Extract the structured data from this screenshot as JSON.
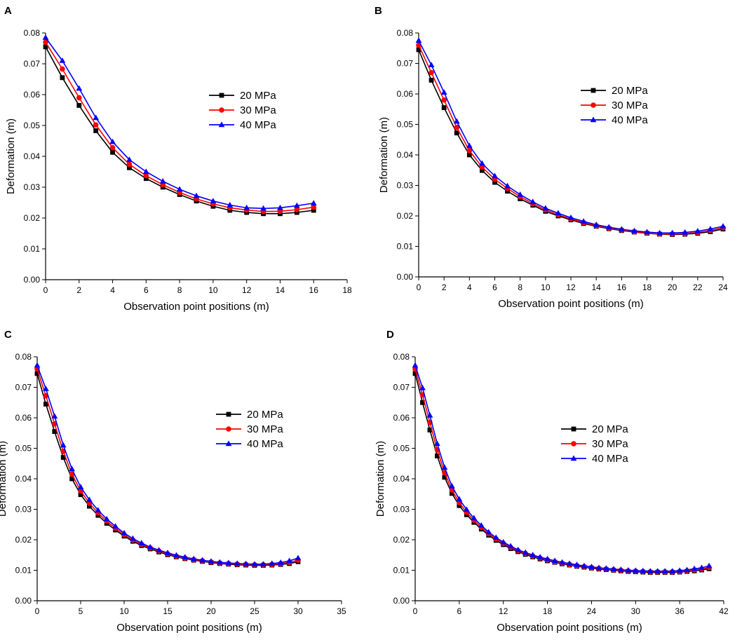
{
  "figure": {
    "panels": [
      "A",
      "B",
      "C",
      "D"
    ]
  },
  "colors": {
    "20 MPa": "#000000",
    "30 MPa": "#ff0000",
    "40 MPa": "#0000ff"
  },
  "chart_data": [
    {
      "panel": "A",
      "type": "line",
      "xlabel": "Observation point positions (m)",
      "ylabel": "Deformation (m)",
      "xlim": [
        0,
        18
      ],
      "ylim": [
        0,
        0.08
      ],
      "xticks": [
        0,
        2,
        4,
        6,
        8,
        10,
        12,
        14,
        16,
        18
      ],
      "yticks": [
        0,
        0.01,
        0.02,
        0.03,
        0.04,
        0.05,
        0.06,
        0.07,
        0.08
      ],
      "ytick_labels": [
        "0.00",
        "0.01",
        "0.02",
        "0.03",
        "0.04",
        "0.05",
        "0.06",
        "0.07",
        "0.08"
      ],
      "legend_position": "upper-middle",
      "x": [
        0,
        1,
        2,
        3,
        4,
        5,
        6,
        7,
        8,
        9,
        10,
        11,
        12,
        13,
        14,
        15,
        16
      ],
      "series": [
        {
          "name": "20 MPa",
          "marker": "square",
          "values": [
            0.0755,
            0.0655,
            0.0565,
            0.0483,
            0.0413,
            0.0363,
            0.0328,
            0.03,
            0.0276,
            0.0255,
            0.0238,
            0.0225,
            0.0218,
            0.0214,
            0.0214,
            0.0218,
            0.0225
          ]
        },
        {
          "name": "30 MPa",
          "marker": "circle",
          "values": [
            0.077,
            0.0683,
            0.059,
            0.0502,
            0.0428,
            0.0374,
            0.0337,
            0.0308,
            0.0283,
            0.0262,
            0.0246,
            0.0233,
            0.0226,
            0.0221,
            0.0222,
            0.0227,
            0.0235
          ]
        },
        {
          "name": "40 MPa",
          "marker": "triangle",
          "values": [
            0.0785,
            0.071,
            0.062,
            0.0525,
            0.0447,
            0.0389,
            0.035,
            0.0319,
            0.0293,
            0.0272,
            0.0255,
            0.0242,
            0.0233,
            0.0231,
            0.0233,
            0.024,
            0.0248
          ]
        }
      ]
    },
    {
      "panel": "B",
      "type": "line",
      "xlabel": "Observation point positions (m)",
      "ylabel": "Deformation (m)",
      "xlim": [
        0,
        24
      ],
      "ylim": [
        0,
        0.08
      ],
      "xticks": [
        0,
        2,
        4,
        6,
        8,
        10,
        12,
        14,
        16,
        18,
        20,
        22,
        24
      ],
      "yticks": [
        0,
        0.01,
        0.02,
        0.03,
        0.04,
        0.05,
        0.06,
        0.07,
        0.08
      ],
      "ytick_labels": [
        "0.00",
        "0.01",
        "0.02",
        "0.03",
        "0.04",
        "0.05",
        "0.06",
        "0.07",
        "0.08"
      ],
      "legend_position": "upper-middle",
      "x": [
        0,
        1,
        2,
        3,
        4,
        5,
        6,
        7,
        8,
        9,
        10,
        11,
        12,
        13,
        14,
        15,
        16,
        17,
        18,
        19,
        20,
        21,
        22,
        23,
        24
      ],
      "series": [
        {
          "name": "20 MPa",
          "marker": "square",
          "values": [
            0.0745,
            0.0645,
            0.0555,
            0.0472,
            0.04,
            0.0349,
            0.031,
            0.0281,
            0.0256,
            0.0235,
            0.0215,
            0.02,
            0.0187,
            0.0175,
            0.0166,
            0.0158,
            0.0152,
            0.0147,
            0.0143,
            0.014,
            0.0139,
            0.014,
            0.0143,
            0.0148,
            0.0157
          ]
        },
        {
          "name": "30 MPa",
          "marker": "circle",
          "values": [
            0.076,
            0.067,
            0.058,
            0.049,
            0.0414,
            0.036,
            0.032,
            0.029,
            0.0263,
            0.024,
            0.022,
            0.0204,
            0.019,
            0.0178,
            0.0168,
            0.016,
            0.0154,
            0.0148,
            0.0144,
            0.0141,
            0.0141,
            0.0142,
            0.0146,
            0.0152,
            0.0161
          ]
        },
        {
          "name": "40 MPa",
          "marker": "triangle",
          "values": [
            0.0775,
            0.0695,
            0.0605,
            0.051,
            0.043,
            0.0372,
            0.0331,
            0.0298,
            0.027,
            0.0246,
            0.0225,
            0.0209,
            0.0194,
            0.0182,
            0.0171,
            0.0163,
            0.0156,
            0.0151,
            0.0147,
            0.0144,
            0.0144,
            0.0146,
            0.015,
            0.0157,
            0.0166
          ]
        }
      ]
    },
    {
      "panel": "C",
      "type": "line",
      "xlabel": "Observation point positions (m)",
      "ylabel": "Deformation (m)",
      "xlim": [
        0,
        35
      ],
      "ylim": [
        0,
        0.08
      ],
      "xticks": [
        0,
        5,
        10,
        15,
        20,
        25,
        30,
        35
      ],
      "yticks": [
        0,
        0.01,
        0.02,
        0.03,
        0.04,
        0.05,
        0.06,
        0.07,
        0.08
      ],
      "ytick_labels": [
        "0.00",
        "0.01",
        "0.02",
        "0.03",
        "0.04",
        "0.05",
        "0.06",
        "0.07",
        "0.08"
      ],
      "legend_position": "middle-right",
      "x": [
        0,
        1,
        2,
        3,
        4,
        5,
        6,
        7,
        8,
        9,
        10,
        11,
        12,
        13,
        14,
        15,
        16,
        17,
        18,
        19,
        20,
        21,
        22,
        23,
        24,
        25,
        26,
        27,
        28,
        29,
        30
      ],
      "series": [
        {
          "name": "20 MPa",
          "marker": "square",
          "values": [
            0.0745,
            0.0645,
            0.0555,
            0.047,
            0.04,
            0.0348,
            0.031,
            0.028,
            0.0254,
            0.0232,
            0.0212,
            0.0195,
            0.0181,
            0.017,
            0.016,
            0.0151,
            0.0144,
            0.0138,
            0.0133,
            0.0129,
            0.0125,
            0.0122,
            0.012,
            0.0118,
            0.0117,
            0.0116,
            0.0116,
            0.0117,
            0.0119,
            0.0122,
            0.0128
          ]
        },
        {
          "name": "30 MPa",
          "marker": "circle",
          "values": [
            0.076,
            0.0672,
            0.058,
            0.049,
            0.0415,
            0.036,
            0.032,
            0.0288,
            0.0261,
            0.0238,
            0.0217,
            0.0199,
            0.0185,
            0.0173,
            0.0163,
            0.0154,
            0.0146,
            0.014,
            0.0135,
            0.0131,
            0.0127,
            0.0124,
            0.0122,
            0.012,
            0.0119,
            0.0118,
            0.0118,
            0.0119,
            0.0122,
            0.0126,
            0.0133
          ]
        },
        {
          "name": "40 MPa",
          "marker": "triangle",
          "values": [
            0.0772,
            0.0695,
            0.0605,
            0.051,
            0.0432,
            0.0373,
            0.0331,
            0.0297,
            0.0268,
            0.0244,
            0.0222,
            0.0204,
            0.0189,
            0.0176,
            0.0166,
            0.0157,
            0.0149,
            0.0143,
            0.0137,
            0.0133,
            0.0129,
            0.0126,
            0.0124,
            0.0122,
            0.0121,
            0.012,
            0.012,
            0.0122,
            0.0125,
            0.0131,
            0.014
          ]
        }
      ]
    },
    {
      "panel": "D",
      "type": "line",
      "xlabel": "Observation point positions (m)",
      "ylabel": "Deformation (m)",
      "xlim": [
        0,
        42
      ],
      "ylim": [
        0,
        0.08
      ],
      "xticks": [
        0,
        6,
        12,
        18,
        24,
        30,
        36,
        42
      ],
      "yticks": [
        0,
        0.01,
        0.02,
        0.03,
        0.04,
        0.05,
        0.06,
        0.07,
        0.08
      ],
      "ytick_labels": [
        "0.00",
        "0.01",
        "0.02",
        "0.03",
        "0.04",
        "0.05",
        "0.06",
        "0.07",
        "0.08"
      ],
      "legend_position": "upper-middle",
      "x": [
        0,
        1,
        2,
        3,
        4,
        5,
        6,
        7,
        8,
        9,
        10,
        11,
        12,
        13,
        14,
        15,
        16,
        17,
        18,
        19,
        20,
        21,
        22,
        23,
        24,
        25,
        26,
        27,
        28,
        29,
        30,
        31,
        32,
        33,
        34,
        35,
        36,
        37,
        38,
        39,
        40
      ],
      "series": [
        {
          "name": "20 MPa",
          "marker": "square",
          "values": [
            0.0745,
            0.065,
            0.056,
            0.0475,
            0.0405,
            0.0352,
            0.0312,
            0.0282,
            0.0257,
            0.0235,
            0.0215,
            0.0198,
            0.0184,
            0.0171,
            0.0161,
            0.0152,
            0.0144,
            0.0137,
            0.0131,
            0.0126,
            0.0121,
            0.0117,
            0.0113,
            0.011,
            0.0107,
            0.0104,
            0.0102,
            0.01,
            0.0098,
            0.0096,
            0.0095,
            0.0094,
            0.0093,
            0.0093,
            0.0093,
            0.0093,
            0.0094,
            0.0096,
            0.0098,
            0.0101,
            0.0105
          ]
        },
        {
          "name": "30 MPa",
          "marker": "circle",
          "values": [
            0.076,
            0.0675,
            0.0585,
            0.0495,
            0.042,
            0.0363,
            0.0322,
            0.029,
            0.0264,
            0.0241,
            0.022,
            0.0203,
            0.0188,
            0.0175,
            0.0164,
            0.0155,
            0.0147,
            0.014,
            0.0134,
            0.0128,
            0.0123,
            0.0119,
            0.0115,
            0.0112,
            0.0109,
            0.0106,
            0.0104,
            0.0102,
            0.01,
            0.0098,
            0.0097,
            0.0096,
            0.0095,
            0.0095,
            0.0095,
            0.0095,
            0.0096,
            0.0098,
            0.0101,
            0.0104,
            0.0109
          ]
        },
        {
          "name": "40 MPa",
          "marker": "triangle",
          "values": [
            0.0772,
            0.0698,
            0.0608,
            0.0515,
            0.0437,
            0.0376,
            0.0333,
            0.0299,
            0.0271,
            0.0247,
            0.0225,
            0.0207,
            0.0192,
            0.0179,
            0.0167,
            0.0158,
            0.015,
            0.0143,
            0.0137,
            0.0131,
            0.0126,
            0.0122,
            0.0118,
            0.0114,
            0.0111,
            0.0108,
            0.0106,
            0.0104,
            0.0102,
            0.01,
            0.0099,
            0.0098,
            0.0097,
            0.0097,
            0.0097,
            0.0097,
            0.0099,
            0.0101,
            0.0105,
            0.0108,
            0.0114
          ]
        }
      ]
    }
  ]
}
